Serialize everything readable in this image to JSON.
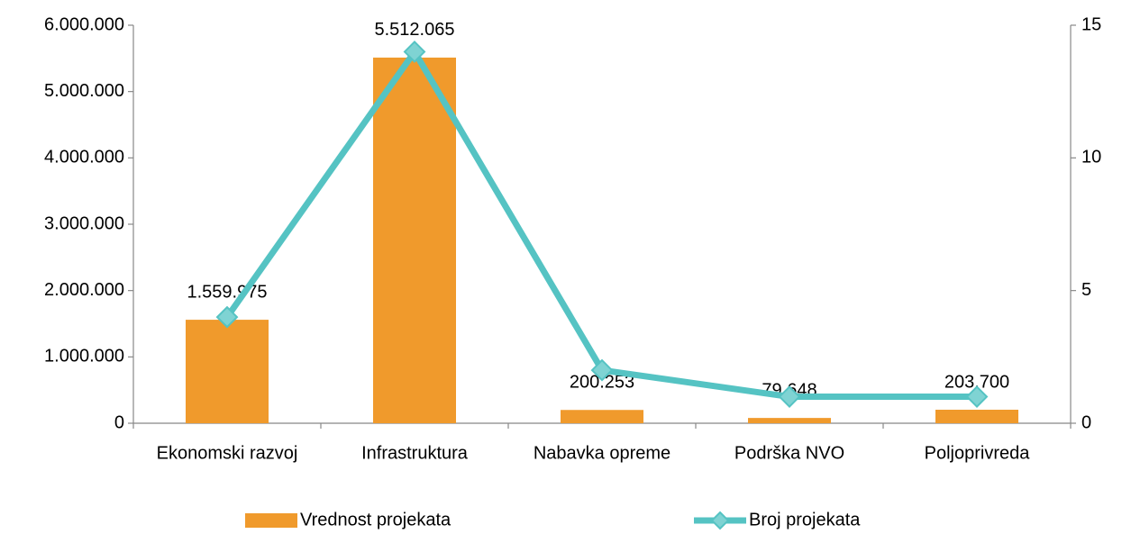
{
  "chart_data": {
    "type": "bar",
    "categories": [
      "Ekonomski razvoj",
      "Infrastruktura",
      "Nabavka opreme",
      "Podrška NVO",
      "Poljoprivreda"
    ],
    "series": [
      {
        "name": "Vrednost projekata",
        "type": "bar",
        "color": "#f09a2c",
        "values": [
          1559975,
          5512065,
          200253,
          79648,
          203700
        ],
        "value_labels": [
          "1.559.975",
          "5.512.065",
          "200.253",
          "79.648",
          "203.700"
        ]
      },
      {
        "name": "Broj projekata",
        "type": "line",
        "axis": "y2",
        "color": "#55c3c3",
        "values": [
          4,
          14,
          2,
          1,
          1
        ]
      }
    ],
    "ylim": [
      0,
      6000000
    ],
    "yticks": [
      0,
      {
        "value": 1000000,
        "label": "1.000.000"
      },
      {
        "value": 2000000,
        "label": "2.000.000"
      },
      {
        "value": 3000000,
        "label": "3.000.000"
      },
      {
        "value": 4000000,
        "label": "4.000.000"
      },
      {
        "value": 5000000,
        "label": "5.000.000"
      },
      {
        "value": 6000000,
        "label": "6.000.000"
      }
    ],
    "y2lim": [
      0,
      15
    ],
    "y2ticks": [
      0,
      5,
      10,
      15
    ],
    "grid": false,
    "legend": "bottom"
  }
}
